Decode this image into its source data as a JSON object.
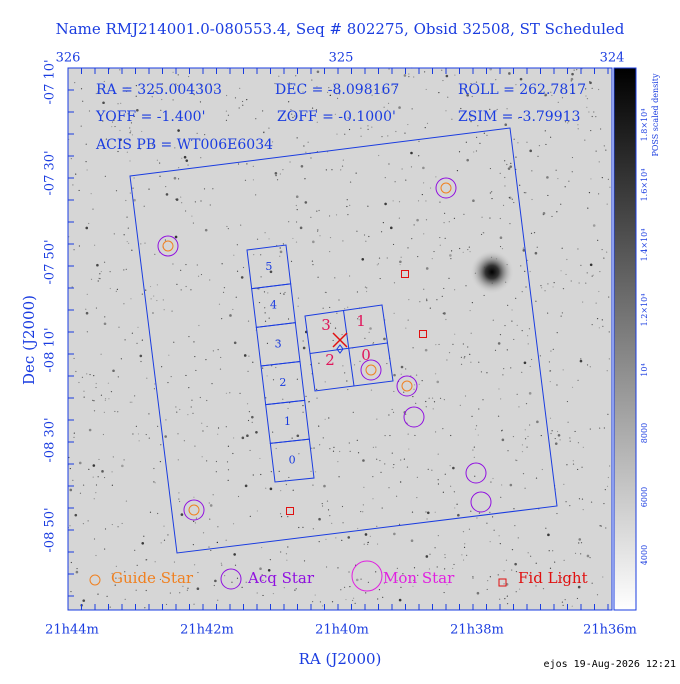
{
  "header": {
    "title": "Name RMJ214001.0-080553.4, Seq # 802275, Obsid 32508, ST Scheduled"
  },
  "top_axis": {
    "labels": [
      "326",
      "325",
      "324"
    ]
  },
  "left_axis": {
    "title": "Dec (J2000)",
    "labels": [
      "-07 10'",
      "-07 30'",
      "-07 50'",
      "-08 10'",
      "-08 30'",
      "-08 50'"
    ]
  },
  "bottom_axis": {
    "title": "RA (J2000)",
    "labels": [
      "21h44m",
      "21h42m",
      "21h40m",
      "21h38m",
      "21h36m"
    ]
  },
  "info": [
    "RA = 325.004303",
    "DEC = -8.098167",
    "ROLL = 262.7817",
    "YOFF = -1.400'",
    "ZOFF = -0.1000'",
    "ZSIM = -3.79913",
    "ACIS PB = WT006E6034"
  ],
  "legend": [
    "Guide Star",
    "Acq Star",
    "Mon Star",
    "Fid Light"
  ],
  "chips": {
    "acis_s": [
      "0",
      "1",
      "2",
      "3",
      "4",
      "5"
    ],
    "acis_i": [
      "0",
      "1",
      "2",
      "3"
    ]
  },
  "colorbar": {
    "title": "POSS scaled density",
    "labels": [
      "4000",
      "6000",
      "8000",
      "10⁴",
      "1.2×10⁴",
      "1.4×10⁴",
      "1.6×10⁴",
      "1.8×10⁴"
    ]
  },
  "footer": "ejos 19-Aug-2026 12:21"
}
